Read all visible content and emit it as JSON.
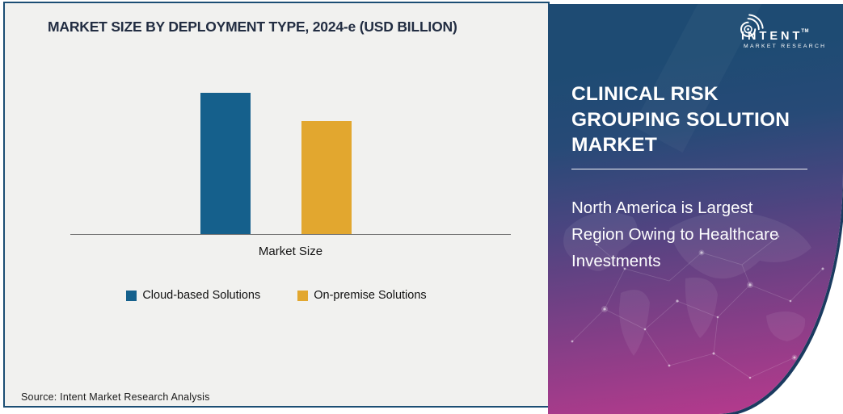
{
  "chart_panel": {
    "title": "MARKET SIZE BY DEPLOYMENT TYPE, 2024-e (USD BILLION)",
    "x_axis_label": "Market Size",
    "source_note": "Source: Intent Market Research Analysis",
    "background": "#F1F1EF",
    "border_color": "#1C4E74"
  },
  "chart_data": {
    "type": "bar",
    "title": "MARKET SIZE BY DEPLOYMENT TYPE, 2024-e (USD BILLION)",
    "categories": [
      "Market Size"
    ],
    "series": [
      {
        "name": "Cloud-based Solutions",
        "color": "#15608C",
        "values": [
          1.0
        ]
      },
      {
        "name": "On-premise Solutions",
        "color": "#E2A72F",
        "values": [
          0.8
        ]
      }
    ],
    "value_axis": "none shown; values are relative bar heights (no numeric labels or gridlines)",
    "legend_position": "bottom",
    "grid": false
  },
  "right_panel": {
    "heading_lines": [
      "CLINICAL RISK",
      "GROUPING SOLUTION",
      "MARKET"
    ],
    "subheading_lines": [
      "North America is Largest",
      "Region Owing to Healthcare",
      "Investments"
    ],
    "gradient_stops": [
      "#1E4B73",
      "#274A77",
      "#4A4580",
      "#7C3F86",
      "#B23A8C"
    ],
    "edge_color": "#1B3B60",
    "logo": {
      "brand": "INTENT",
      "trademark": "TM",
      "tagline": "MARKET RESEARCH"
    }
  }
}
